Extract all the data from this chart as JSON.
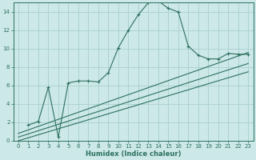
{
  "xlabel": "Humidex (Indice chaleur)",
  "ylabel": "",
  "bg_color": "#cce8e8",
  "grid_color": "#aacfcf",
  "line_color": "#2d7060",
  "xlim": [
    -0.5,
    23.5
  ],
  "ylim": [
    0,
    15
  ],
  "xticks": [
    0,
    1,
    2,
    3,
    4,
    5,
    6,
    7,
    8,
    9,
    10,
    11,
    12,
    13,
    14,
    15,
    16,
    17,
    18,
    19,
    20,
    21,
    22,
    23
  ],
  "yticks": [
    0,
    2,
    4,
    6,
    8,
    10,
    12,
    14
  ],
  "curve_x": [
    1,
    2,
    3,
    4,
    5,
    6,
    7,
    8,
    9,
    10,
    11,
    12,
    13,
    14,
    15,
    16,
    17,
    18,
    19,
    20,
    21,
    22,
    23
  ],
  "curve_y": [
    1.7,
    2.1,
    5.8,
    0.4,
    6.3,
    6.5,
    6.5,
    6.4,
    7.4,
    10.1,
    12.0,
    13.7,
    15.0,
    15.2,
    14.4,
    14.0,
    10.3,
    9.3,
    8.9,
    8.9,
    9.5,
    9.4,
    9.4
  ],
  "line2_x": [
    0,
    23
  ],
  "line2_y": [
    0.8,
    9.6
  ],
  "line3_x": [
    0,
    23
  ],
  "line3_y": [
    0.4,
    8.4
  ],
  "line4_x": [
    0,
    23
  ],
  "line4_y": [
    0.0,
    7.5
  ]
}
